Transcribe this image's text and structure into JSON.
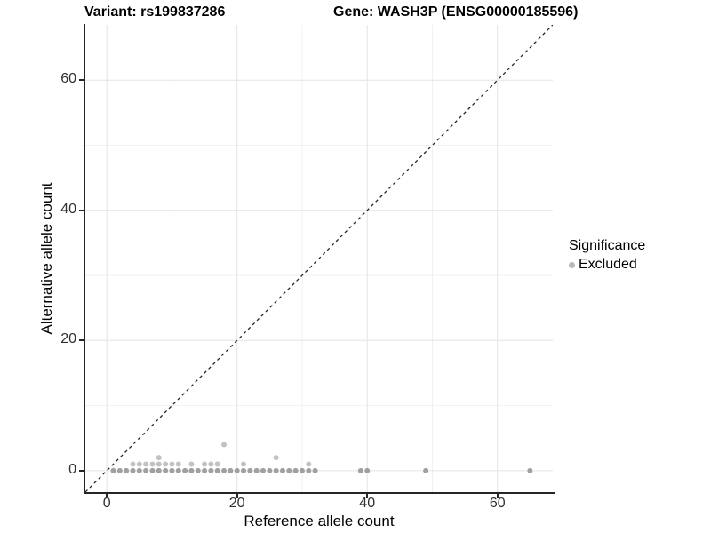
{
  "titles": {
    "variant": "Variant: rs199837286",
    "gene": "Gene: WASH3P (ENSG00000185596)"
  },
  "chart_data": {
    "type": "scatter",
    "title": "Variant: rs199837286 — Gene: WASH3P (ENSG00000185596)",
    "xlabel": "Reference allele count",
    "ylabel": "Alternative allele count",
    "xlim": [
      -3.3,
      68.5
    ],
    "ylim": [
      -3.3,
      68.5
    ],
    "x_ticks": [
      0,
      20,
      40,
      60
    ],
    "y_ticks": [
      0,
      20,
      40,
      60
    ],
    "x_minor_ticks": [
      10,
      30,
      50
    ],
    "y_minor_ticks": [
      10,
      30,
      50
    ],
    "grid": "on",
    "grid_major_color": "#e4e4e4",
    "grid_minor_color": "#f1f1f1",
    "identity_line": {
      "equation": "y = x",
      "style": "dashed",
      "color": "#262626"
    },
    "legend": {
      "title": "Significance",
      "position": "right",
      "items": [
        {
          "label": "Excluded",
          "color": "#b9b9b9"
        }
      ]
    },
    "series": [
      {
        "name": "Excluded",
        "color": "#c2c2c2",
        "color_dense": "#a0a0a0",
        "points": [
          [
            1,
            0
          ],
          [
            2,
            0
          ],
          [
            3,
            0
          ],
          [
            4,
            0
          ],
          [
            5,
            0
          ],
          [
            6,
            0
          ],
          [
            7,
            0
          ],
          [
            8,
            0
          ],
          [
            9,
            0
          ],
          [
            10,
            0
          ],
          [
            11,
            0
          ],
          [
            12,
            0
          ],
          [
            13,
            0
          ],
          [
            14,
            0
          ],
          [
            15,
            0
          ],
          [
            16,
            0
          ],
          [
            17,
            0
          ],
          [
            18,
            0
          ],
          [
            19,
            0
          ],
          [
            20,
            0
          ],
          [
            21,
            0
          ],
          [
            22,
            0
          ],
          [
            23,
            0
          ],
          [
            24,
            0
          ],
          [
            25,
            0
          ],
          [
            26,
            0
          ],
          [
            27,
            0
          ],
          [
            28,
            0
          ],
          [
            29,
            0
          ],
          [
            30,
            0
          ],
          [
            31,
            0
          ],
          [
            32,
            0
          ],
          [
            39,
            0
          ],
          [
            40,
            0
          ],
          [
            49,
            0
          ],
          [
            65,
            0
          ],
          [
            4,
            1
          ],
          [
            5,
            1
          ],
          [
            6,
            1
          ],
          [
            7,
            1
          ],
          [
            8,
            1
          ],
          [
            9,
            1
          ],
          [
            10,
            1
          ],
          [
            11,
            1
          ],
          [
            13,
            1
          ],
          [
            15,
            1
          ],
          [
            16,
            1
          ],
          [
            17,
            1
          ],
          [
            21,
            1
          ],
          [
            31,
            1
          ],
          [
            8,
            2
          ],
          [
            26,
            2
          ],
          [
            18,
            4
          ]
        ]
      }
    ]
  }
}
